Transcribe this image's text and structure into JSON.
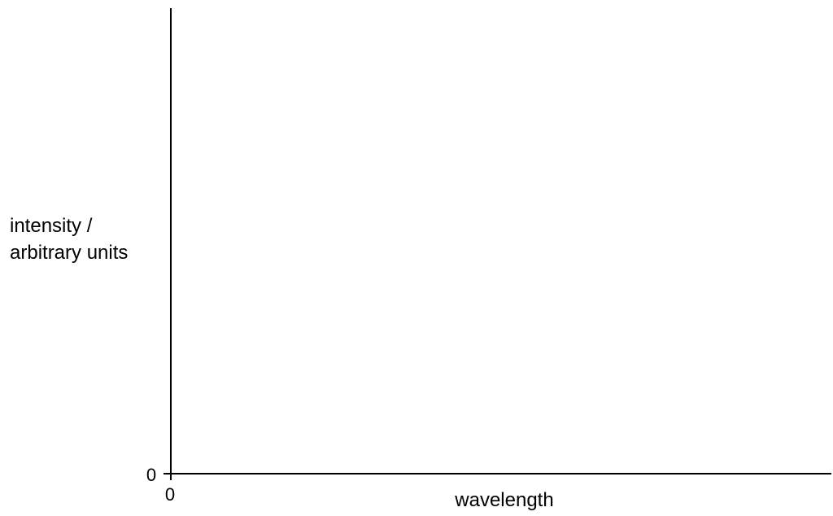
{
  "chart_data": {
    "type": "line",
    "title": "",
    "xlabel": "wavelength",
    "ylabel_lines": [
      "intensity /",
      "arbitrary units"
    ],
    "x_tick_labels": [
      "0"
    ],
    "y_tick_labels": [
      "0"
    ],
    "series": [],
    "grid": false,
    "legend": "none"
  },
  "colors": {
    "axis": "#000000",
    "background": "#ffffff"
  }
}
